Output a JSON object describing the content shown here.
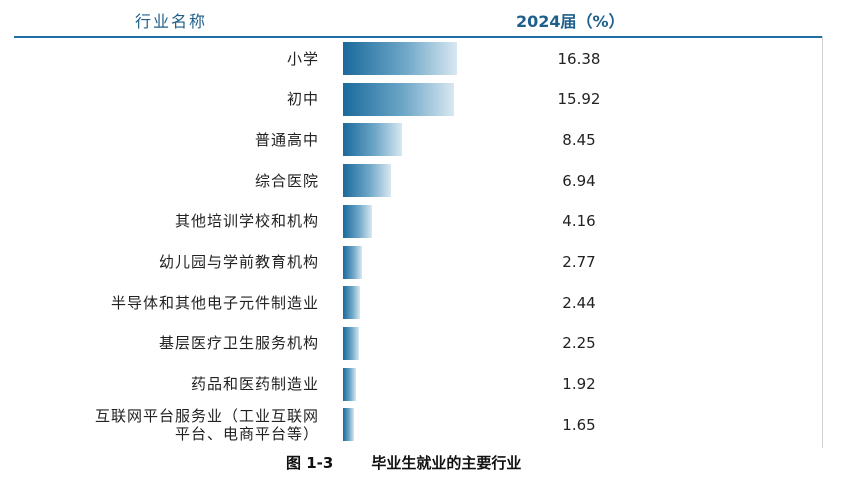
{
  "header": {
    "industry_col": "行业名称",
    "value_col": "2024届（%）"
  },
  "caption": {
    "number": "图 1-3",
    "title": "毕业生就业的主要行业"
  },
  "chart_data": {
    "type": "bar",
    "orientation": "horizontal",
    "title": "毕业生就业的主要行业",
    "xlabel": "2024届（%）",
    "ylabel": "行业名称",
    "categories": [
      "小学",
      "初中",
      "普通高中",
      "综合医院",
      "其他培训学校和机构",
      "幼儿园与学前教育机构",
      "半导体和其他电子元件制造业",
      "基层医疗卫生服务机构",
      "药品和医药制造业",
      "互联网平台服务业（工业互联网\n平台、电商平台等）"
    ],
    "values": [
      16.38,
      15.92,
      8.45,
      6.94,
      4.16,
      2.77,
      2.44,
      2.25,
      1.92,
      1.65
    ],
    "value_labels": [
      "16.38",
      "15.92",
      "8.45",
      "6.94",
      "4.16",
      "2.77",
      "2.44",
      "2.25",
      "1.92",
      "1.65"
    ],
    "xlim": [
      0,
      16.38
    ]
  }
}
